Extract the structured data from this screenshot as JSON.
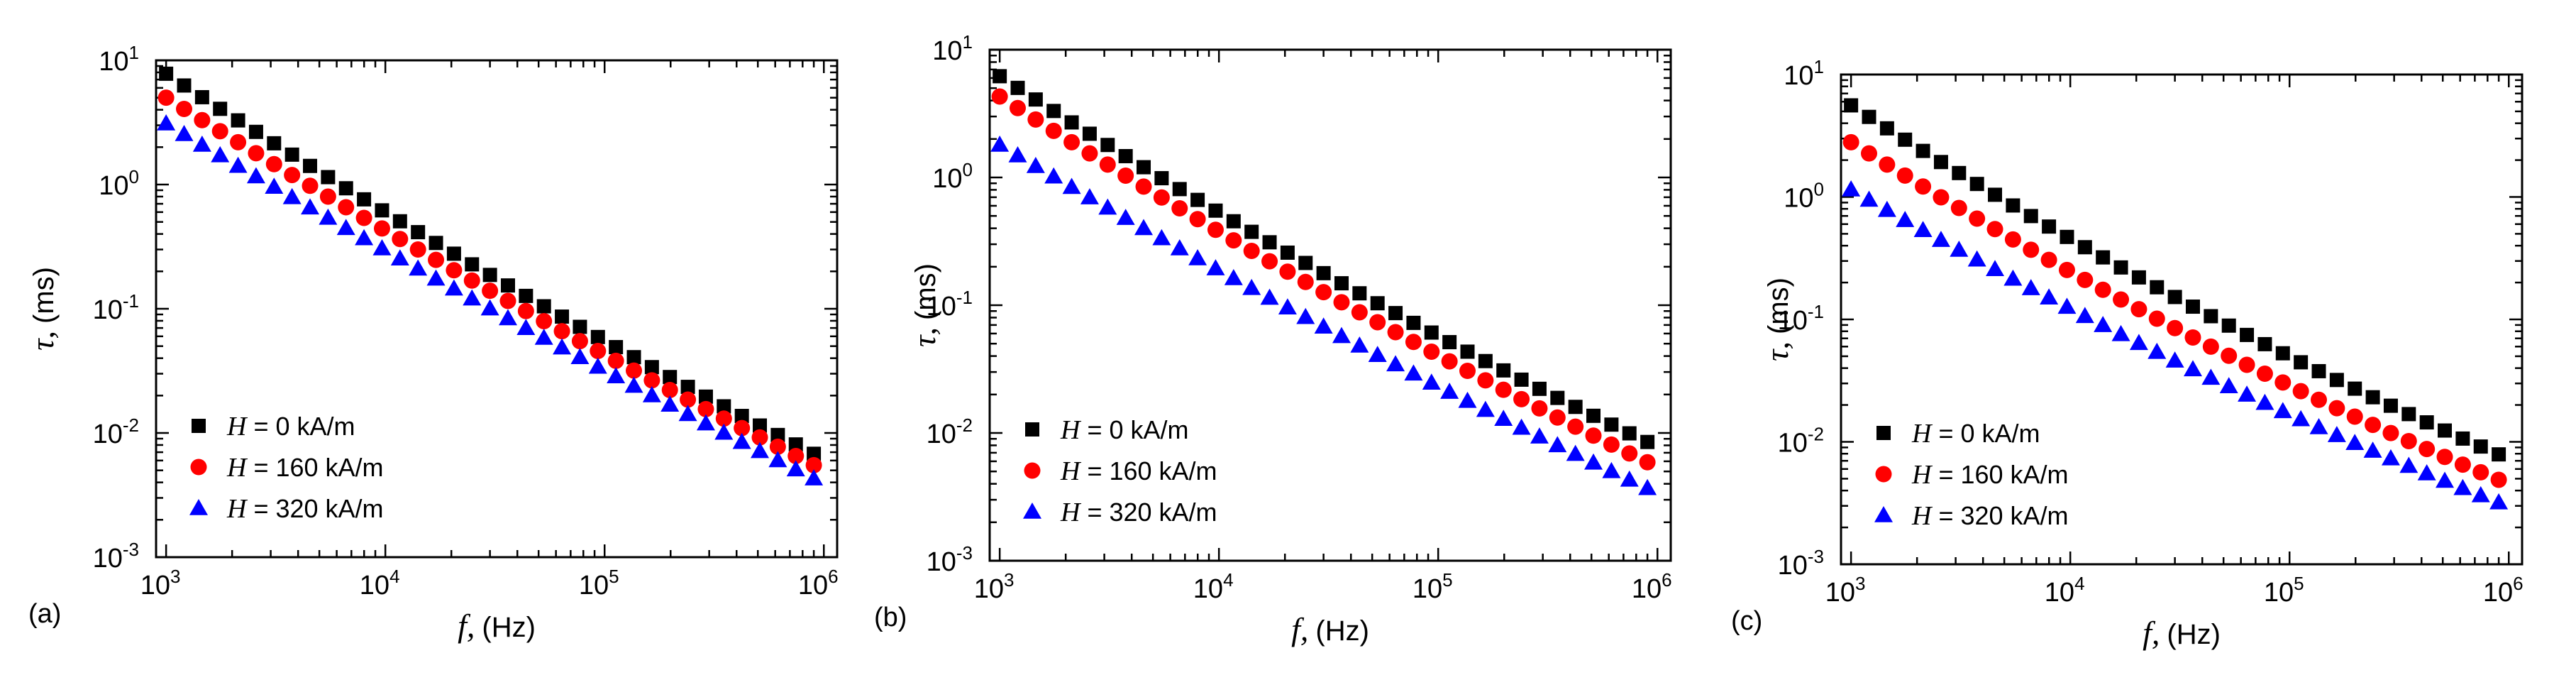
{
  "figure": {
    "panel_labels": [
      "(a)",
      "(b)",
      "(c)"
    ]
  },
  "chart_data": [
    {
      "type": "scatter",
      "panel": "(a)",
      "xscale": "log",
      "yscale": "log",
      "xlim": [
        900,
        1150000
      ],
      "ylim": [
        0.001,
        10
      ],
      "xticks": [
        "10^3",
        "10^4",
        "10^5",
        "10^6"
      ],
      "yticks": [
        "10^-3",
        "10^-2",
        "10^-1",
        "10^0",
        "10^1"
      ],
      "xlabel_symbol": "f,",
      "xlabel_unit": "(Hz)",
      "ylabel_symbol": "τ,",
      "ylabel_unit": "(ms)",
      "legend_position": "bottom-left",
      "points_per_series": 37,
      "x_range": [
        1000,
        900000
      ],
      "series": [
        {
          "symbol": "H",
          "name": "= 0 kA/m",
          "marker": "square",
          "color": "#000000",
          "y_start": 7.8,
          "y_end": 0.0068,
          "knee": 0.18
        },
        {
          "symbol": "H",
          "name": "= 160 kA/m",
          "marker": "circle",
          "color": "#ff0000",
          "y_start": 5.0,
          "y_end": 0.0055,
          "knee": 0.15
        },
        {
          "symbol": "H",
          "name": "= 320 kA/m",
          "marker": "triangle",
          "color": "#0000ff",
          "y_start": 3.1,
          "y_end": 0.0043,
          "knee": 0.12
        }
      ]
    },
    {
      "type": "scatter",
      "panel": "(b)",
      "xscale": "log",
      "yscale": "log",
      "xlim": [
        900,
        1150000
      ],
      "ylim": [
        0.001,
        10
      ],
      "xticks": [
        "10^3",
        "10^4",
        "10^5",
        "10^6"
      ],
      "yticks": [
        "10^-3",
        "10^-2",
        "10^-1",
        "10^0",
        "10^1"
      ],
      "xlabel_symbol": "f,",
      "xlabel_unit": "(Hz)",
      "ylabel_symbol": "τ,",
      "ylabel_unit": "(ms)",
      "legend_position": "bottom-left",
      "points_per_series": 37,
      "x_range": [
        1000,
        900000
      ],
      "series": [
        {
          "symbol": "H",
          "name": "= 0 kA/m",
          "marker": "square",
          "color": "#000000",
          "y_start": 6.2,
          "y_end": 0.0085,
          "knee": 0.22
        },
        {
          "symbol": "H",
          "name": "= 160 kA/m",
          "marker": "circle",
          "color": "#ff0000",
          "y_start": 4.3,
          "y_end": 0.0059,
          "knee": 0.2
        },
        {
          "symbol": "H",
          "name": "= 320 kA/m",
          "marker": "triangle",
          "color": "#0000ff",
          "y_start": 1.8,
          "y_end": 0.0037,
          "knee": 0.16
        }
      ]
    },
    {
      "type": "scatter",
      "panel": "(c)",
      "xscale": "log",
      "yscale": "log",
      "xlim": [
        900,
        1150000
      ],
      "ylim": [
        0.001,
        10
      ],
      "xticks": [
        "10^3",
        "10^4",
        "10^5",
        "10^6"
      ],
      "yticks": [
        "10^-3",
        "10^-2",
        "10^-1",
        "10^0",
        "10^1"
      ],
      "xlabel_symbol": "f,",
      "xlabel_unit": "(Hz)",
      "ylabel_symbol": "τ,",
      "ylabel_unit": "(ms)",
      "legend_position": "bottom-left",
      "points_per_series": 37,
      "x_range": [
        1000,
        900000
      ],
      "series": [
        {
          "symbol": "H",
          "name": "= 0 kA/m",
          "marker": "square",
          "color": "#000000",
          "y_start": 5.6,
          "y_end": 0.0079,
          "knee": 0.28
        },
        {
          "symbol": "H",
          "name": "= 160 kA/m",
          "marker": "circle",
          "color": "#ff0000",
          "y_start": 2.8,
          "y_end": 0.0049,
          "knee": 0.28
        },
        {
          "symbol": "H",
          "name": "= 320 kA/m",
          "marker": "triangle",
          "color": "#0000ff",
          "y_start": 1.15,
          "y_end": 0.0032,
          "knee": 0.24
        }
      ]
    }
  ]
}
